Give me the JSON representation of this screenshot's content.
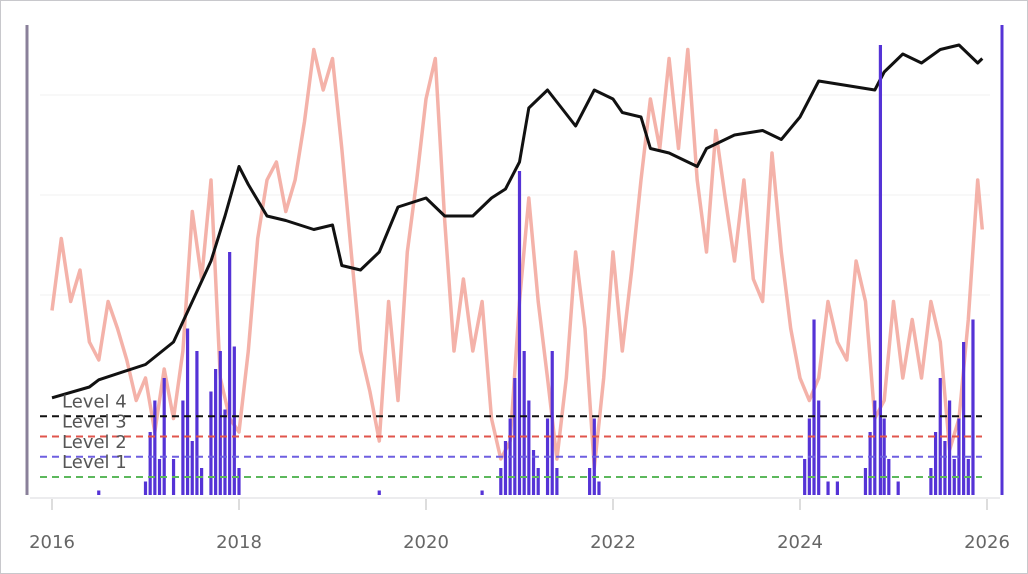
{
  "chart_data": {
    "type": "line",
    "xlim": [
      2016,
      2026
    ],
    "xticks": [
      2016,
      2018,
      2020,
      2022,
      2024,
      2026
    ],
    "ylim": [
      0,
      100
    ],
    "series": [
      {
        "type": "line",
        "color": "#f2a49a",
        "x": [
          2016.0,
          2016.1,
          2016.2,
          2016.3,
          2016.4,
          2016.5,
          2016.6,
          2016.7,
          2016.8,
          2016.9,
          2017.0,
          2017.1,
          2017.2,
          2017.3,
          2017.4,
          2017.5,
          2017.6,
          2017.7,
          2017.8,
          2017.9,
          2018.0,
          2018.1,
          2018.2,
          2018.3,
          2018.4,
          2018.5,
          2018.6,
          2018.7,
          2018.8,
          2018.9,
          2019.0,
          2019.1,
          2019.2,
          2019.3,
          2019.4,
          2019.5,
          2019.6,
          2019.7,
          2019.8,
          2019.9,
          2020.0,
          2020.1,
          2020.2,
          2020.3,
          2020.4,
          2020.5,
          2020.6,
          2020.7,
          2020.8,
          2020.9,
          2021.0,
          2021.1,
          2021.2,
          2021.3,
          2021.4,
          2021.5,
          2021.6,
          2021.7,
          2021.8,
          2021.9,
          2022.0,
          2022.1,
          2022.2,
          2022.3,
          2022.4,
          2022.5,
          2022.6,
          2022.7,
          2022.8,
          2022.9,
          2023.0,
          2023.1,
          2023.2,
          2023.3,
          2023.4,
          2023.5,
          2023.6,
          2023.7,
          2023.8,
          2023.9,
          2024.0,
          2024.1,
          2024.2,
          2024.3,
          2024.4,
          2024.5,
          2024.6,
          2024.7,
          2024.8,
          2024.9,
          2025.0,
          2025.1,
          2025.2,
          2025.3,
          2025.4,
          2025.5,
          2025.6,
          2025.7,
          2025.8,
          2025.9,
          2025.95
        ],
        "values": [
          41,
          57,
          43,
          50,
          34,
          30,
          43,
          37,
          30,
          21,
          26,
          14,
          28,
          17,
          32,
          63,
          48,
          70,
          26,
          17,
          14,
          32,
          57,
          70,
          74,
          63,
          70,
          83,
          99,
          90,
          97,
          77,
          54,
          32,
          23,
          12,
          43,
          21,
          54,
          70,
          88,
          97,
          61,
          32,
          48,
          32,
          43,
          17,
          8,
          12,
          43,
          66,
          43,
          26,
          8,
          26,
          54,
          37,
          6,
          26,
          54,
          32,
          50,
          70,
          88,
          77,
          97,
          77,
          99,
          70,
          54,
          81,
          66,
          52,
          70,
          48,
          43,
          76,
          54,
          37,
          26,
          21,
          26,
          43,
          34,
          30,
          52,
          43,
          17,
          21,
          43,
          26,
          39,
          26,
          43,
          34,
          10,
          17,
          39,
          70,
          59
        ]
      },
      {
        "type": "line",
        "color": "#111111",
        "x": [
          2016.0,
          2016.4,
          2016.5,
          2017.0,
          2017.3,
          2017.5,
          2017.7,
          2017.85,
          2018.0,
          2018.1,
          2018.3,
          2018.5,
          2018.8,
          2019.0,
          2019.1,
          2019.3,
          2019.5,
          2019.7,
          2020.0,
          2020.2,
          2020.5,
          2020.7,
          2020.85,
          2021.0,
          2021.1,
          2021.3,
          2021.45,
          2021.6,
          2021.8,
          2022.0,
          2022.1,
          2022.3,
          2022.4,
          2022.6,
          2022.9,
          2023.0,
          2023.3,
          2023.6,
          2023.8,
          2024.0,
          2024.2,
          2024.5,
          2024.8,
          2024.9,
          2025.1,
          2025.3,
          2025.5,
          2025.7,
          2025.9,
          2025.95
        ],
        "values": [
          21.6,
          24,
          25.6,
          29,
          34,
          43,
          52,
          62,
          73,
          69,
          62,
          61,
          59,
          60,
          51,
          50,
          54,
          64,
          66,
          62,
          62,
          66,
          68,
          74,
          86,
          90,
          86,
          82,
          90,
          88,
          85,
          84,
          77,
          76,
          73,
          77,
          80,
          81,
          79,
          84,
          92,
          91,
          90,
          94,
          98,
          96,
          99,
          100,
          96,
          97
        ]
      },
      {
        "type": "bar",
        "color": "#5533d6",
        "x": [
          2016.5,
          2017.0,
          2017.05,
          2017.1,
          2017.15,
          2017.2,
          2017.3,
          2017.4,
          2017.45,
          2017.5,
          2017.55,
          2017.6,
          2017.7,
          2017.75,
          2017.8,
          2017.85,
          2017.9,
          2017.95,
          2018.0,
          2019.5,
          2020.6,
          2020.8,
          2020.85,
          2020.9,
          2020.95,
          2021.0,
          2021.05,
          2021.1,
          2021.15,
          2021.2,
          2021.3,
          2021.35,
          2021.4,
          2021.75,
          2021.8,
          2021.85,
          2024.05,
          2024.1,
          2024.15,
          2024.2,
          2024.3,
          2024.4,
          2024.7,
          2024.75,
          2024.8,
          2024.86,
          2024.9,
          2024.95,
          2025.05,
          2025.4,
          2025.45,
          2025.5,
          2025.55,
          2025.6,
          2025.65,
          2025.7,
          2025.75,
          2025.8,
          2025.85
        ],
        "values": [
          1,
          3,
          14,
          21,
          8,
          26,
          8,
          21,
          37,
          12,
          32,
          6,
          23,
          28,
          32,
          19,
          54,
          33,
          6,
          1,
          1,
          6,
          12,
          17,
          26,
          72,
          32,
          21,
          10,
          6,
          17,
          32,
          6,
          6,
          17,
          3,
          8,
          17,
          39,
          21,
          3,
          3,
          6,
          14,
          21,
          100,
          17,
          8,
          3,
          6,
          14,
          26,
          12,
          21,
          8,
          17,
          34,
          8,
          39
        ]
      }
    ],
    "hlines": [
      {
        "label": "Level 4",
        "value": 17.5,
        "color": "#111111"
      },
      {
        "label": "Level 3",
        "value": 13,
        "color": "#e0554c"
      },
      {
        "label": "Level 2",
        "value": 8.5,
        "color": "#6e5fe0"
      },
      {
        "label": "Level 1",
        "value": 4,
        "color": "#5cb85c"
      }
    ]
  }
}
